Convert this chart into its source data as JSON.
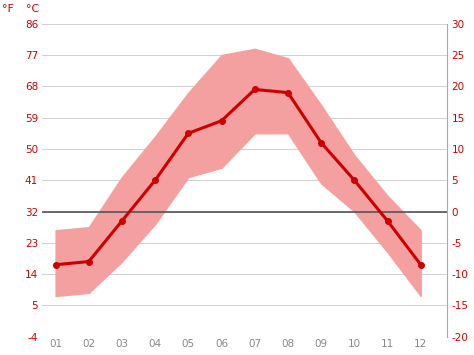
{
  "months": [
    1,
    2,
    3,
    4,
    5,
    6,
    7,
    8,
    9,
    10,
    11,
    12
  ],
  "month_labels": [
    "01",
    "02",
    "03",
    "04",
    "05",
    "06",
    "07",
    "08",
    "09",
    "10",
    "11",
    "12"
  ],
  "mean_temp_c": [
    -8.5,
    -8.0,
    -1.5,
    5.0,
    12.5,
    14.5,
    19.5,
    19.0,
    11.0,
    5.0,
    -1.5,
    -8.5
  ],
  "max_temp_c": [
    -3.0,
    -2.5,
    5.5,
    12.0,
    19.0,
    25.0,
    26.0,
    24.5,
    17.0,
    9.0,
    2.5,
    -3.0
  ],
  "min_temp_c": [
    -13.5,
    -13.0,
    -8.0,
    -2.0,
    5.5,
    7.0,
    12.5,
    12.5,
    4.5,
    0.0,
    -6.5,
    -13.5
  ],
  "ylim_c": [
    -20,
    30
  ],
  "yticks_c": [
    -20,
    -15,
    -10,
    -5,
    0,
    5,
    10,
    15,
    20,
    25,
    30
  ],
  "yticks_f": [
    -4,
    5,
    14,
    23,
    32,
    41,
    50,
    59,
    68,
    77,
    86
  ],
  "line_color": "#cc0000",
  "band_color": "#f4a0a0",
  "zero_line_color": "#555555",
  "grid_color": "#d0d0d0",
  "axis_label_color": "#cc0000",
  "xtick_color": "#888888",
  "background_color": "#ffffff"
}
